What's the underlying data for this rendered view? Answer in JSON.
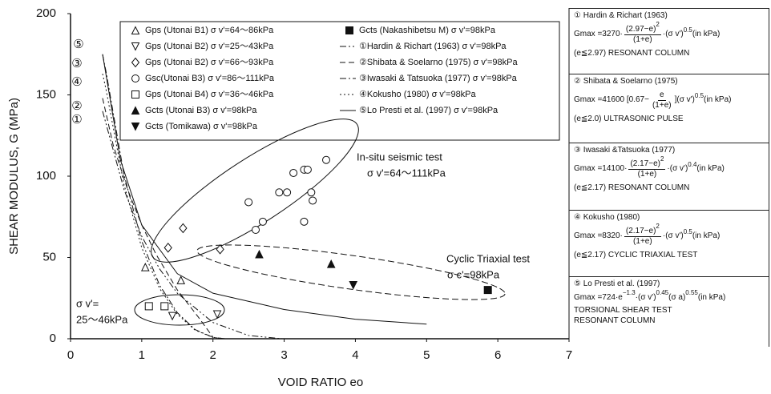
{
  "chart_data": {
    "type": "scatter",
    "xlabel": "VOID RATIO eo",
    "ylabel": "SHEAR MODULUS, G (MPa)",
    "xlim": [
      0,
      7
    ],
    "xticks": [
      0,
      1,
      2,
      3,
      4,
      5,
      6,
      7
    ],
    "ylim": [
      0,
      200
    ],
    "yticks": [
      0,
      50,
      100,
      150,
      200
    ],
    "grid": false,
    "series": [
      {
        "name": "Gps (Utonai B1) σ v'=64～86kPa",
        "marker": "triangle-open",
        "color": "#111111",
        "x": [
          1.05,
          1.55
        ],
        "values": [
          44,
          36
        ]
      },
      {
        "name": "Gps (Utonai B2) σ v'=25～43kPa",
        "marker": "triangle-down-open",
        "color": "#111111",
        "x": [
          1.43,
          2.06
        ],
        "values": [
          14,
          15
        ]
      },
      {
        "name": "Gps (Utonai B2) σ v'=66～93kPa",
        "marker": "diamond-open",
        "color": "#111111",
        "x": [
          1.37,
          1.58,
          2.1
        ],
        "values": [
          56,
          68,
          55
        ]
      },
      {
        "name": "Gsc(Utonai B3) σ v'=86～111kPa",
        "marker": "circle-open",
        "color": "#111111",
        "x": [
          2.5,
          2.6,
          2.7,
          2.93,
          3.04,
          3.13,
          3.28,
          3.33,
          3.38,
          3.4,
          3.28,
          3.59
        ],
        "values": [
          84,
          67,
          72,
          90,
          90,
          102,
          104,
          104,
          90,
          85,
          72,
          110
        ]
      },
      {
        "name": "Gps (Utonai B4) σ v'=36～46kPa",
        "marker": "square-open",
        "color": "#111111",
        "x": [
          1.1,
          1.32
        ],
        "values": [
          20,
          20
        ]
      },
      {
        "name": "Gcts (Utonai B3) σ v'=98kPa",
        "marker": "triangle-filled",
        "color": "#111111",
        "x": [
          2.65,
          3.66
        ],
        "values": [
          52,
          46
        ]
      },
      {
        "name": "Gcts (Tomikawa) σ v'=98kPa",
        "marker": "triangle-down-filled",
        "color": "#111111",
        "x": [
          3.97
        ],
        "values": [
          33
        ]
      },
      {
        "name": "Gcts (Nakashibetsu M) σ v'=98kPa",
        "marker": "square-filled",
        "color": "#111111",
        "x": [
          5.86
        ],
        "values": [
          30
        ]
      },
      {
        "name": "①Hardin & Richart (1963) σ v'=98kPa",
        "label": "①",
        "line": "dash-dot-dot",
        "color": "#111111",
        "x": [
          0.45,
          0.5,
          0.75,
          1,
          1.25,
          1.5,
          2,
          2.5,
          2.97
        ],
        "values": [
          140,
          132,
          92,
          63,
          43,
          28,
          10,
          2,
          0
        ]
      },
      {
        "name": "②Shibata & Soelarno (1975) σ v'=98kPa",
        "label": "②",
        "line": "dashed",
        "color": "#111111",
        "x": [
          0.45,
          0.6,
          0.8,
          1,
          1.2,
          1.5,
          1.8,
          2
        ],
        "values": [
          148,
          119,
          92,
          70,
          52,
          30,
          13,
          1
        ]
      },
      {
        "name": "③Iwasaki & Tatsuoka (1977) σ v'=98kPa",
        "label": "③",
        "line": "dash-dot",
        "color": "#111111",
        "x": [
          0.45,
          0.5,
          0.75,
          1,
          1.25,
          1.5,
          1.75,
          2,
          2.17
        ],
        "values": [
          175,
          164,
          101,
          60,
          33,
          16,
          5.6,
          0.85,
          0
        ]
      },
      {
        "name": "④Kokusho (1980) σ v'=98kPa",
        "label": "④",
        "line": "dotted",
        "color": "#111111",
        "x": [
          0.45,
          0.5,
          0.75,
          1,
          1.25,
          1.5,
          1.75,
          2,
          2.17
        ],
        "values": [
          163,
          153,
          95,
          56,
          31,
          15,
          5.3,
          0.8,
          0
        ]
      },
      {
        "name": "⑤Lo Presti et al. (1997) σ v'=98kPa",
        "label": "⑤",
        "line": "solid",
        "color": "#111111",
        "x": [
          0.45,
          0.7,
          1,
          1.5,
          2,
          3,
          4,
          5
        ],
        "values": [
          175,
          110,
          70,
          40,
          28,
          18,
          12,
          9
        ]
      }
    ],
    "annotations": [
      "In-situ seismic test",
      "σ v'=64～111kPa",
      "Cyclic Triaxial test",
      "σ c'=98kPa",
      "σ v'=",
      "25～46kPa"
    ]
  },
  "panel": [
    {
      "title": "① Hardin & Richart (1963)",
      "formula": [
        {
          "text": "Gmax =3270·"
        },
        {
          "num": "(2.97−e)",
          "num_sup": "2",
          "den": "(1+e)"
        },
        {
          "text": "·(σ v')"
        },
        {
          "sup": "0.5"
        },
        {
          "text": " (in kPa)"
        }
      ],
      "notes": [
        "(e≦2.97) RESONANT COLUMN"
      ]
    },
    {
      "title": "② Shibata & Soelarno (1975)",
      "formula": [
        {
          "text": "Gmax =41600 [0.67−"
        },
        {
          "num": "e",
          "den": "(1+e)"
        },
        {
          "text": "](σ v')"
        },
        {
          "sup": "0.5"
        },
        {
          "text": " (in kPa)"
        }
      ],
      "notes": [
        "(e≦2.0) ULTRASONIC PULSE"
      ]
    },
    {
      "title": "③ Iwasaki &Tatsuoka (1977)",
      "formula": [
        {
          "text": "Gmax =14100·"
        },
        {
          "num": "(2.17−e)",
          "num_sup": "2",
          "den": "(1+e)"
        },
        {
          "text": "·(σ v')"
        },
        {
          "sup": "0.4"
        },
        {
          "text": " (in kPa)"
        }
      ],
      "notes": [
        "(e≦2.17) RESONANT COLUMN"
      ]
    },
    {
      "title": "④ Kokusho (1980)",
      "formula": [
        {
          "text": "Gmax =8320·"
        },
        {
          "num": "(2.17−e)",
          "num_sup": "2",
          "den": "(1+e)"
        },
        {
          "text": "·(σ v')"
        },
        {
          "sup": "0.5"
        },
        {
          "text": " (in kPa)"
        }
      ],
      "notes": [
        "(e≦2.17) CYCLIC TRIAXIAL TEST"
      ]
    },
    {
      "title": "⑤ Lo Presti et al. (1997)",
      "formula": [
        {
          "text": "Gmax =724·e"
        },
        {
          "sup": "−1.3"
        },
        {
          "text": "·(σ v')"
        },
        {
          "sup": "0.45"
        },
        {
          "text": "(σ a)"
        },
        {
          "sup": "0.55"
        },
        {
          "text": " (in kPa)"
        }
      ],
      "notes": [
        "TORSIONAL SHEAR TEST",
        "RESONANT COLUMN"
      ]
    }
  ]
}
